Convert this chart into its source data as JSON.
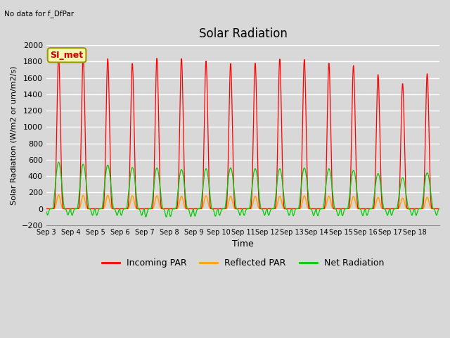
{
  "title": "Solar Radiation",
  "xlabel": "Time",
  "ylabel": "Solar Radiation (W/m2 or um/m2/s)",
  "top_left_text": "No data for f_DfPar",
  "legend_box_label": "SI_met",
  "ylim": [
    -200,
    2000
  ],
  "yticks": [
    -200,
    0,
    200,
    400,
    600,
    800,
    1000,
    1200,
    1400,
    1600,
    1800,
    2000
  ],
  "xtick_labels": [
    "Sep 3",
    "Sep 4",
    "Sep 5",
    "Sep 6",
    "Sep 7",
    "Sep 8",
    "Sep 9",
    "Sep 10",
    "Sep 11",
    "Sep 12",
    "Sep 13",
    "Sep 14",
    "Sep 15",
    "Sep 16",
    "Sep 17",
    "Sep 18"
  ],
  "background_color": "#d8d8d8",
  "plot_bg_color": "#d8d8d8",
  "grid_color": "#ffffff",
  "incoming_color": "#ff0000",
  "reflected_color": "#ffa500",
  "net_color": "#00cc00",
  "legend_entries": [
    "Incoming PAR",
    "Reflected PAR",
    "Net Radiation"
  ],
  "n_days": 16,
  "incoming_peaks": [
    1870,
    1850,
    1835,
    1775,
    1840,
    1835,
    1805,
    1775,
    1780,
    1830,
    1825,
    1780,
    1750,
    1640,
    1530,
    1650
  ],
  "net_peaks": [
    570,
    545,
    535,
    505,
    500,
    480,
    490,
    500,
    490,
    490,
    500,
    490,
    470,
    430,
    380,
    440
  ],
  "reflected_peaks": [
    170,
    165,
    165,
    160,
    160,
    155,
    160,
    155,
    155,
    155,
    160,
    155,
    150,
    140,
    130,
    140
  ],
  "net_troughs": [
    -75,
    -80,
    -80,
    -80,
    -100,
    -95,
    -90,
    -80,
    -80,
    -80,
    -85,
    -85,
    -85,
    -80,
    -80,
    -80
  ]
}
